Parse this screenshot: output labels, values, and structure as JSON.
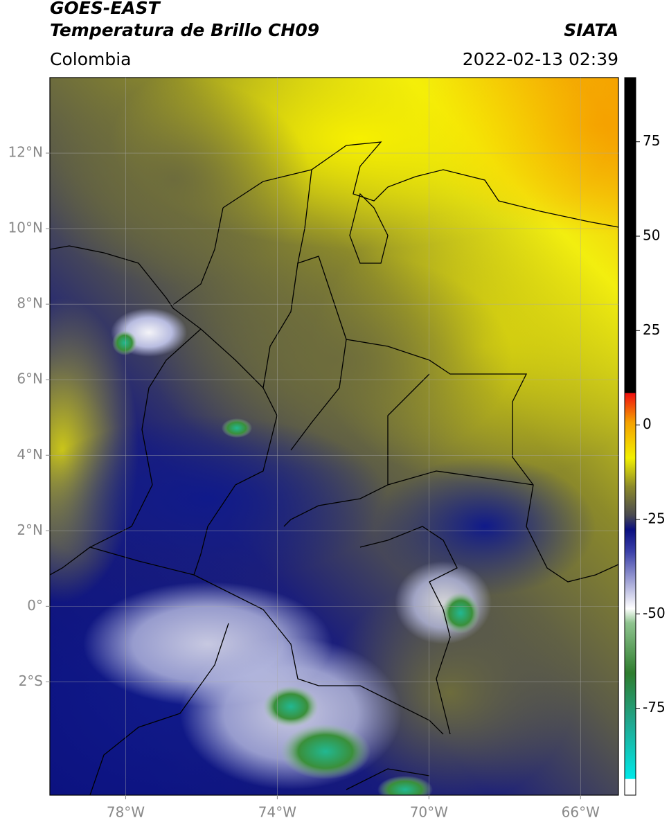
{
  "header": {
    "title": "GOES-EAST",
    "subtitle": "Temperatura de Brillo CH09",
    "source": "SIATA",
    "region": "Colombia",
    "datetime": "2022-02-13 02:39"
  },
  "map": {
    "xlim": [
      -80,
      -65
    ],
    "ylim": [
      -5,
      14
    ],
    "xticks": [
      {
        "value": -78,
        "label": "78°W"
      },
      {
        "value": -74,
        "label": "74°W"
      },
      {
        "value": -70,
        "label": "70°W"
      },
      {
        "value": -66,
        "label": "66°W"
      }
    ],
    "yticks": [
      {
        "value": 12,
        "label": "12°N"
      },
      {
        "value": 10,
        "label": "10°N"
      },
      {
        "value": 8,
        "label": "8°N"
      },
      {
        "value": 6,
        "label": "6°N"
      },
      {
        "value": 4,
        "label": "4°N"
      },
      {
        "value": 2,
        "label": "2°N"
      },
      {
        "value": 0,
        "label": "0°"
      },
      {
        "value": -2,
        "label": "2°S"
      }
    ],
    "grid": true
  },
  "colorbar": {
    "lim": [
      -98,
      92
    ],
    "ticks": [
      75,
      50,
      25,
      0,
      -25,
      -50,
      -75
    ]
  }
}
